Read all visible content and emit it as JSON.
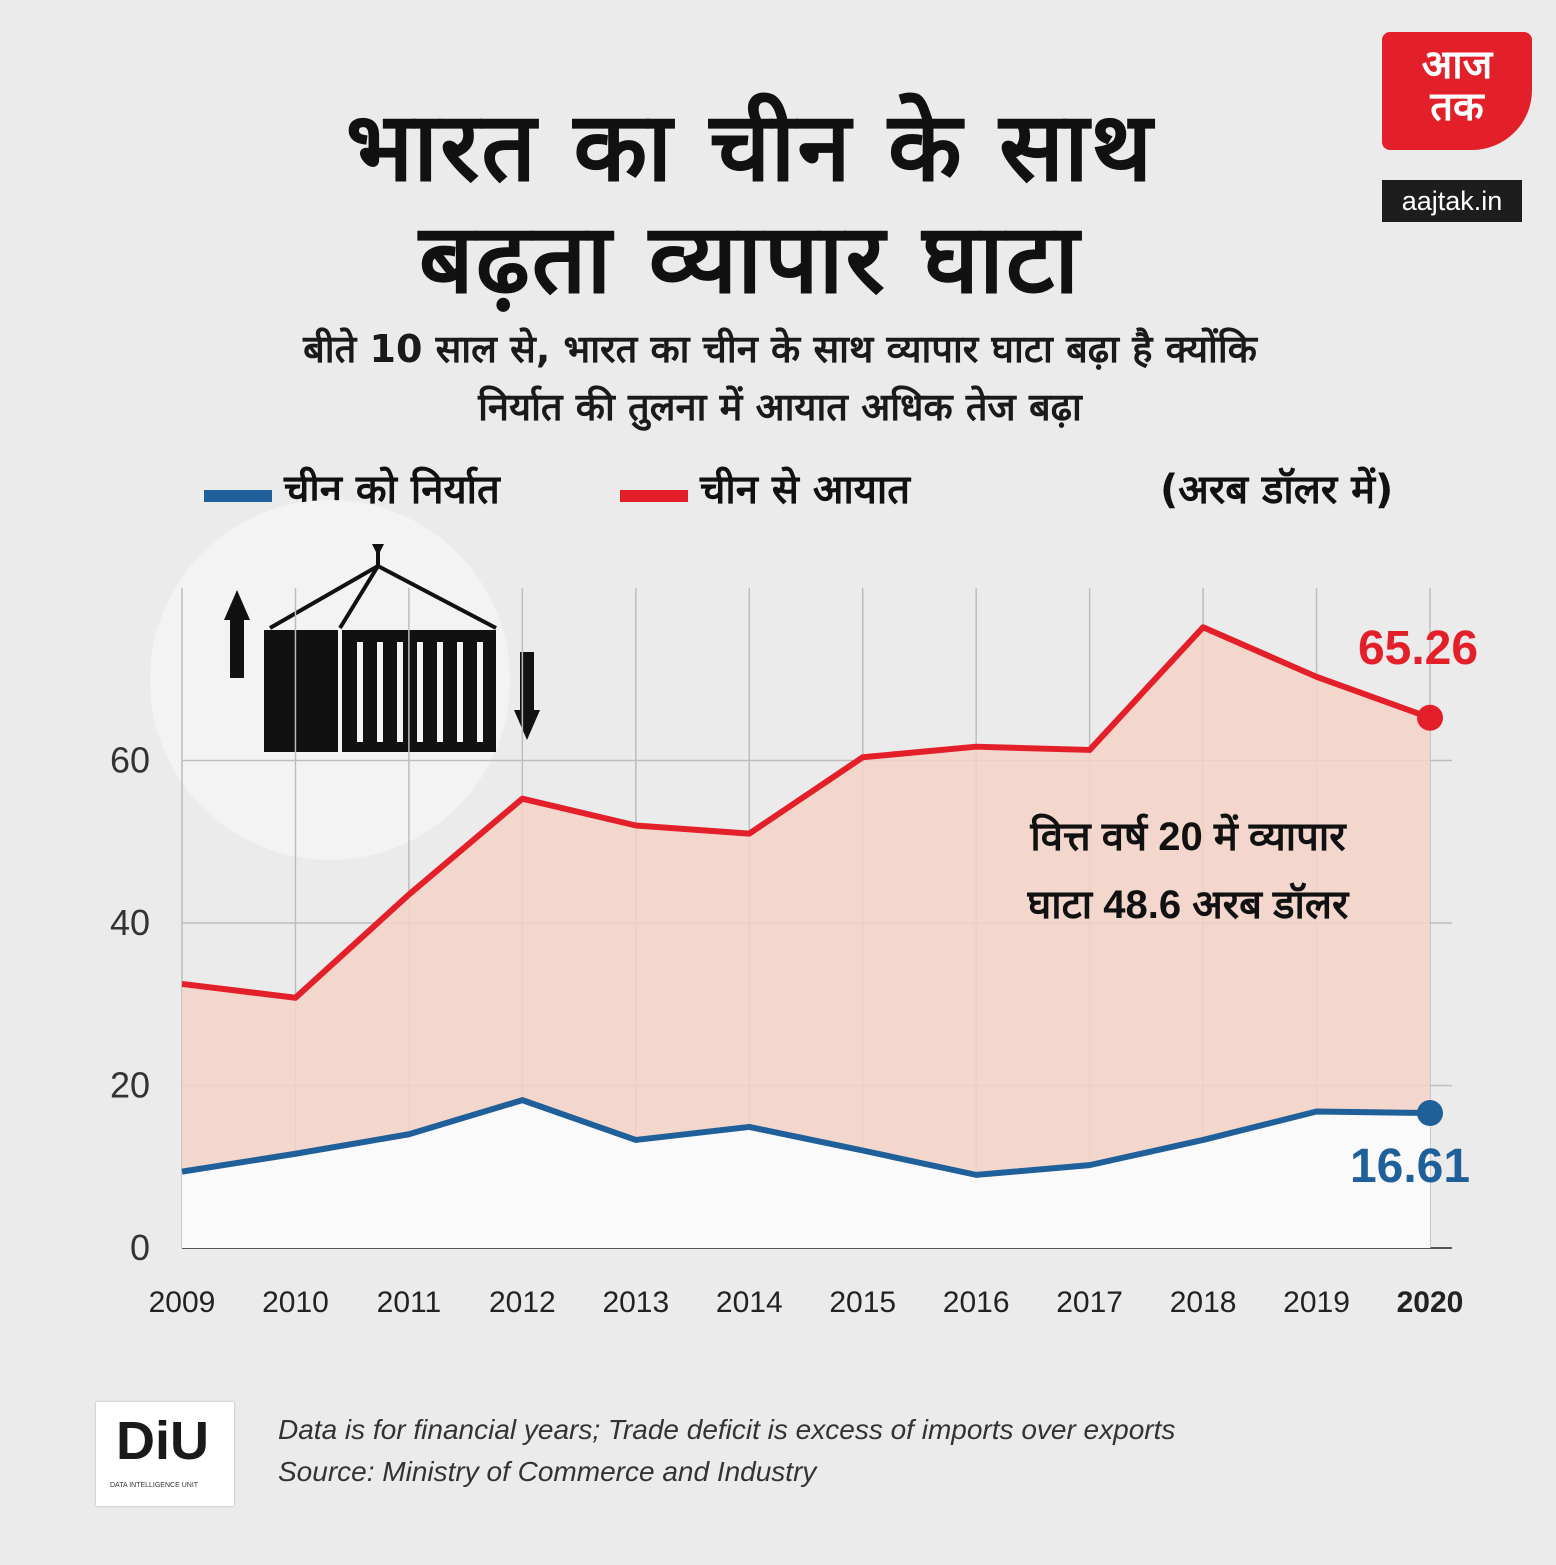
{
  "title": {
    "line1": "भारत का चीन के साथ",
    "line2": "बढ़ता व्यापार घाटा"
  },
  "subtitle": {
    "line1": "बीते 10 साल से, भारत का चीन के साथ व्यापार घाटा बढ़ा है क्योंकि",
    "line2": "निर्यात की तुलना में आयात अधिक तेज बढ़ा"
  },
  "unit_label": "(अरब डॉलर में)",
  "logo": {
    "line1": "आज",
    "line2": "तक",
    "site": "aajtak.in"
  },
  "colors": {
    "exports": "#1f5f9a",
    "imports": "#e3202a",
    "fill": "#f5d3c8"
  },
  "chart_data": {
    "type": "line",
    "title": "भारत का चीन के साथ बढ़ता व्यापार घाटा",
    "x": [
      "2009",
      "2010",
      "2011",
      "2012",
      "2013",
      "2014",
      "2015",
      "2016",
      "2017",
      "2018",
      "2019",
      "2020"
    ],
    "series": [
      {
        "name": "चीन को निर्यात",
        "values": [
          9.4,
          11.6,
          14.0,
          18.2,
          13.3,
          14.9,
          12.0,
          9.0,
          10.2,
          13.3,
          16.8,
          16.61
        ]
      },
      {
        "name": "चीन से आयात",
        "values": [
          32.5,
          30.8,
          43.5,
          55.3,
          52.0,
          51.0,
          60.4,
          61.7,
          61.3,
          76.4,
          70.3,
          65.26
        ]
      }
    ],
    "ylim": [
      0,
      80
    ],
    "yticks": [
      "0",
      "20",
      "40",
      "60"
    ],
    "grid": true,
    "end_labels": {
      "imports": "65.26",
      "exports": "16.61"
    },
    "annotation": {
      "line1": "वित्त वर्ष 20 में व्यापार",
      "line2": "घाटा 48.6 अरब डॉलर"
    },
    "xlabel": "",
    "ylabel": "अरब डॉलर में"
  },
  "footer": {
    "note": "Data is for financial years; Trade deficit is excess of imports over exports",
    "source": "Source: Ministry of Commerce and Industry",
    "diu_logo": "DiU",
    "diu_sub": "DATA INTELLIGENCE UNIT"
  }
}
